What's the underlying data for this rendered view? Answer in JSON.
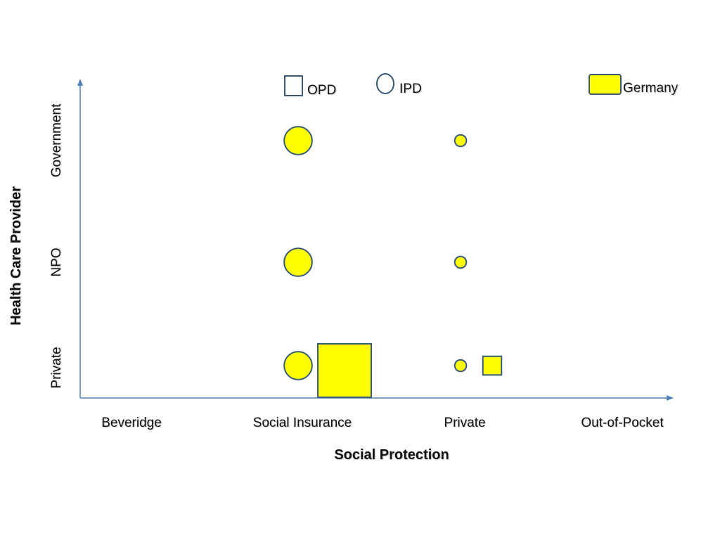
{
  "chart_data": {
    "type": "scatter",
    "title": "",
    "xlabel": "Social Protection",
    "ylabel": "Health Care Provider",
    "x_categories": [
      "Beveridge",
      "Social Insurance",
      "Private",
      "Out-of-Pocket"
    ],
    "y_categories": [
      "Private",
      "NPO",
      "Government"
    ],
    "legend": {
      "shapes": [
        {
          "shape": "square",
          "label": "OPD"
        },
        {
          "shape": "circle",
          "label": "IPD"
        }
      ],
      "countries": [
        {
          "label": "Germany",
          "color": "#ffff00"
        }
      ],
      "placement": "top"
    },
    "series": [
      {
        "name": "Germany",
        "color": "#ffff00",
        "points": [
          {
            "x": "Social Insurance",
            "y": "Government",
            "shape": "circle",
            "size": 0.45
          },
          {
            "x": "Social Insurance",
            "y": "NPO",
            "shape": "circle",
            "size": 0.45
          },
          {
            "x": "Social Insurance",
            "y": "Private",
            "shape": "circle",
            "size": 0.45
          },
          {
            "x": "Social Insurance",
            "y": "Private",
            "shape": "square",
            "size": 1.0
          },
          {
            "x": "Private",
            "y": "Government",
            "shape": "circle",
            "size": 0.1
          },
          {
            "x": "Private",
            "y": "NPO",
            "shape": "circle",
            "size": 0.1
          },
          {
            "x": "Private",
            "y": "Private",
            "shape": "circle",
            "size": 0.1
          },
          {
            "x": "Private",
            "y": "Private",
            "shape": "square",
            "size": 0.25
          }
        ]
      }
    ],
    "grid": false,
    "colors": {
      "axis": "#4f81bd",
      "marker_stroke": "#3a5a7a",
      "marker_fill": "#ffff00"
    }
  }
}
